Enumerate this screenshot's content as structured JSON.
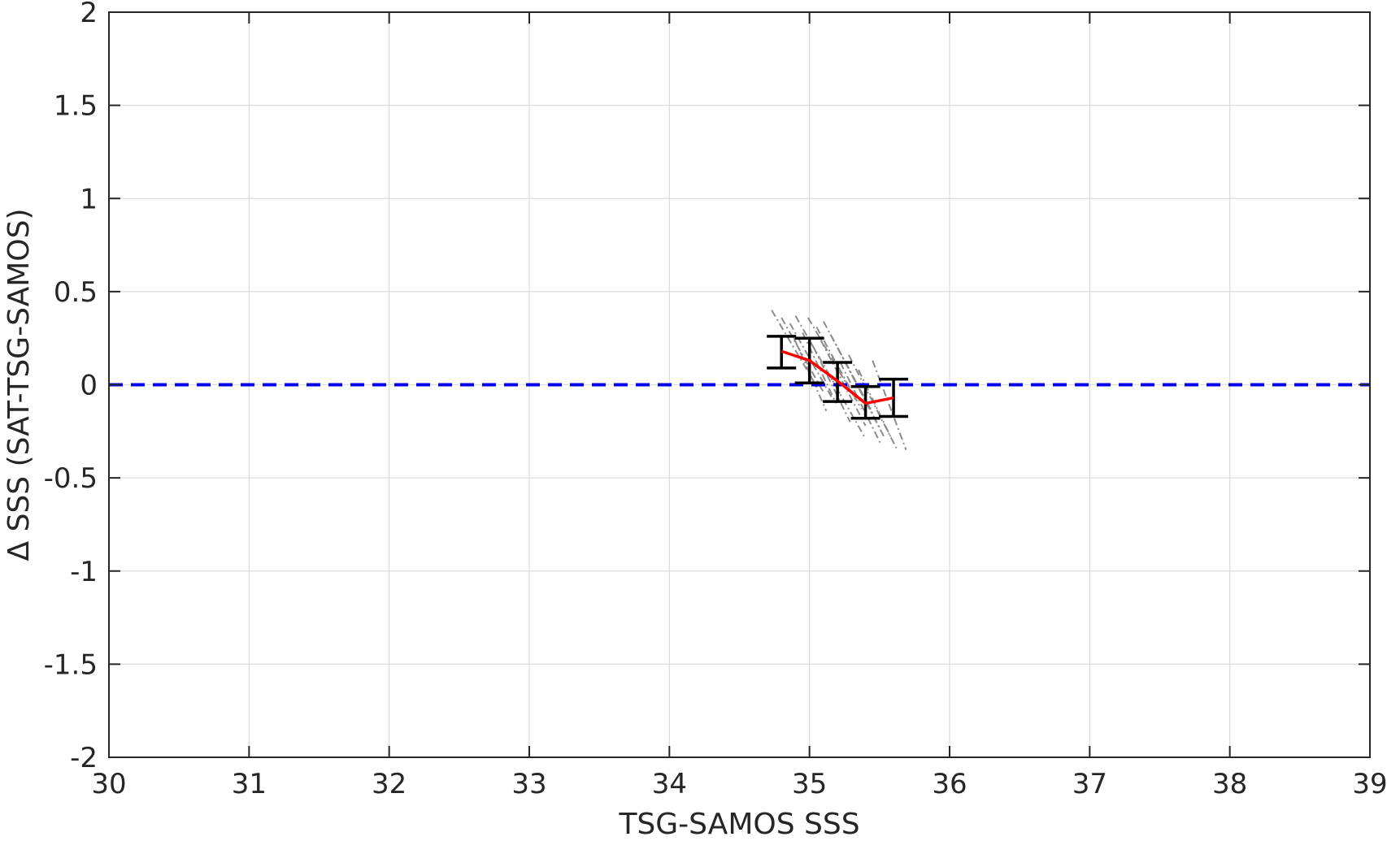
{
  "chart_data": {
    "type": "line",
    "title": "",
    "xlabel": "TSG-SAMOS SSS",
    "ylabel": "Δ SSS (SAT-TSG-SAMOS)",
    "xlim": [
      30,
      39
    ],
    "ylim": [
      -2,
      2
    ],
    "xticks": [
      30,
      31,
      32,
      33,
      34,
      35,
      36,
      37,
      38,
      39
    ],
    "yticks": [
      -2,
      -1.5,
      -1,
      -0.5,
      0,
      0.5,
      1,
      1.5,
      2
    ],
    "xtick_labels": [
      "30",
      "31",
      "32",
      "33",
      "34",
      "35",
      "36",
      "37",
      "38",
      "39"
    ],
    "ytick_labels": [
      "-2",
      "-1.5",
      "-1",
      "-0.5",
      "0",
      "0.5",
      "1",
      "1.5",
      "2"
    ],
    "grid": true,
    "legend": "none",
    "series": [
      {
        "role": "bin-mean",
        "color": "#ff0000",
        "x": [
          34.8,
          35.0,
          35.2,
          35.4,
          35.6
        ],
        "y": [
          0.18,
          0.13,
          0.02,
          -0.1,
          -0.07
        ]
      }
    ],
    "error_bars": {
      "color": "#000000",
      "x": [
        34.8,
        35.0,
        35.2,
        35.4,
        35.6
      ],
      "upper": [
        0.26,
        0.25,
        0.12,
        -0.01,
        0.03
      ],
      "lower": [
        0.09,
        0.01,
        -0.09,
        -0.18,
        -0.17
      ]
    },
    "reference_line": {
      "y": 0,
      "style": "dashed",
      "color": "#0000ee"
    },
    "scatter_segments": {
      "color": "#8c8c8c",
      "style": "dash-dot",
      "segments": [
        [
          34.73,
          0.4,
          35.06,
          -0.02
        ],
        [
          34.8,
          0.36,
          35.1,
          -0.04
        ],
        [
          34.86,
          0.33,
          35.16,
          -0.07
        ],
        [
          34.9,
          0.37,
          35.22,
          -0.05
        ],
        [
          34.95,
          0.28,
          35.19,
          -0.1
        ],
        [
          34.99,
          0.36,
          35.33,
          -0.08
        ],
        [
          35.05,
          0.31,
          35.37,
          -0.13
        ],
        [
          35.1,
          0.34,
          35.45,
          -0.15
        ],
        [
          35.08,
          0.24,
          35.4,
          -0.22
        ],
        [
          35.15,
          0.27,
          35.5,
          -0.23
        ],
        [
          35.2,
          0.2,
          35.54,
          -0.29
        ],
        [
          35.22,
          0.12,
          35.51,
          -0.32
        ],
        [
          35.28,
          0.16,
          35.62,
          -0.34
        ],
        [
          35.35,
          0.08,
          35.58,
          -0.28
        ],
        [
          35.45,
          0.13,
          35.69,
          -0.35
        ],
        [
          34.89,
          0.25,
          35.12,
          -0.14
        ],
        [
          35.03,
          0.2,
          35.29,
          -0.2
        ],
        [
          35.13,
          0.07,
          35.4,
          -0.29
        ]
      ]
    }
  }
}
